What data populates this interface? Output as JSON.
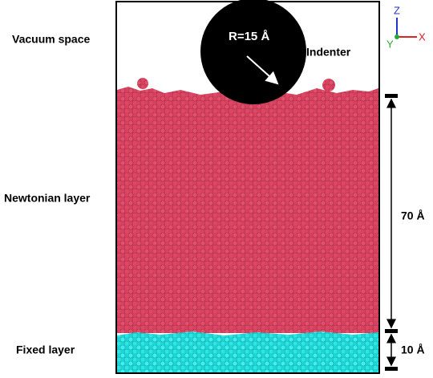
{
  "labels": {
    "vacuum": "Vacuum space",
    "newtonian": "Newtonian layer",
    "fixed": "Fixed layer",
    "indenter": "Indenter"
  },
  "indenter_radius": "R=15 Å",
  "dimensions": {
    "newtonian_thickness": "70 Å",
    "fixed_thickness": "10 Å"
  },
  "axes": {
    "z": "Z",
    "x": "X",
    "y": "Y"
  }
}
